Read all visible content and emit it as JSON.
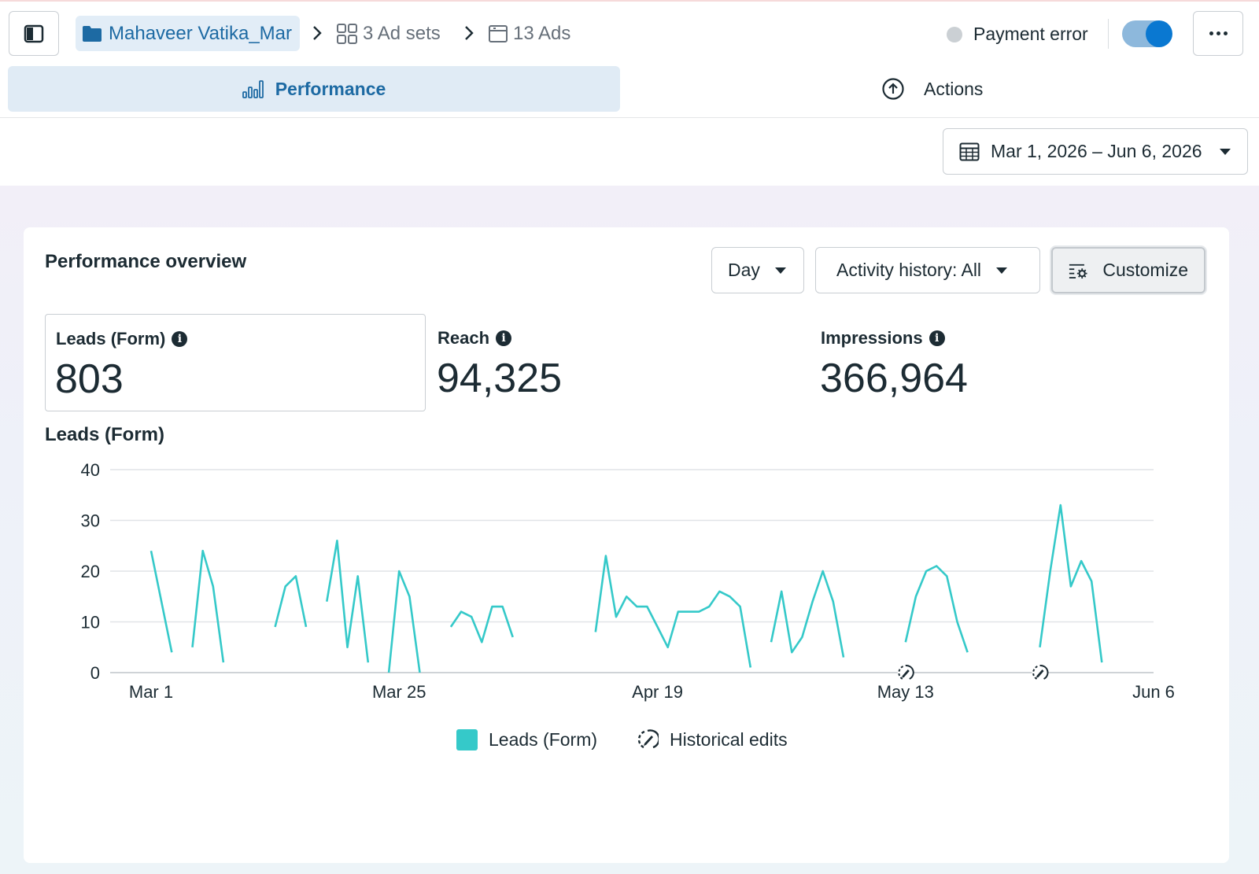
{
  "breadcrumb": {
    "campaign": "Mahaveer Vatika_Mar",
    "adsets": "3 Ad sets",
    "ads": "13 Ads"
  },
  "status": {
    "label": "Payment error",
    "toggle_on": true
  },
  "tabs": {
    "performance": "Performance",
    "actions": "Actions"
  },
  "date_range": "Mar 1, 2026 – Jun 6, 2026",
  "overview": {
    "title": "Performance overview",
    "day_label": "Day",
    "activity_label": "Activity history: All",
    "customize_label": "Customize"
  },
  "metrics": [
    {
      "label": "Leads (Form)",
      "value": "803"
    },
    {
      "label": "Reach",
      "value": "94,325"
    },
    {
      "label": "Impressions",
      "value": "366,964"
    }
  ],
  "chart_title": "Leads (Form)",
  "legend": {
    "series": "Leads (Form)",
    "edits": "Historical edits"
  },
  "colors": {
    "accent": "#1d6aa3",
    "series": "#35c9c9",
    "toggle": "#0a78d1"
  },
  "chart_data": {
    "type": "line",
    "x_axis": "date",
    "x_start": "2026-03-01",
    "x_end": "2026-06-06",
    "x_tick_labels": [
      "Mar 1",
      "Mar 25",
      "Apr 19",
      "May 13",
      "Jun 6"
    ],
    "x_tick_dates": [
      "2026-03-01",
      "2026-03-25",
      "2026-04-19",
      "2026-05-13",
      "2026-06-06"
    ],
    "ylim": [
      0,
      40
    ],
    "y_ticks": [
      0,
      10,
      20,
      30,
      40
    ],
    "grid": true,
    "series": [
      {
        "name": "Leads (Form)",
        "segments": [
          [
            [
              "2026-03-01",
              24
            ],
            [
              "2026-03-03",
              4
            ]
          ],
          [
            [
              "2026-03-05",
              5
            ],
            [
              "2026-03-06",
              24
            ],
            [
              "2026-03-07",
              17
            ],
            [
              "2026-03-08",
              2
            ]
          ],
          [
            [
              "2026-03-13",
              9
            ],
            [
              "2026-03-14",
              17
            ],
            [
              "2026-03-15",
              19
            ],
            [
              "2026-03-16",
              9
            ]
          ],
          [
            [
              "2026-03-18",
              14
            ],
            [
              "2026-03-19",
              26
            ],
            [
              "2026-03-20",
              5
            ],
            [
              "2026-03-21",
              19
            ],
            [
              "2026-03-22",
              2
            ]
          ],
          [
            [
              "2026-03-24",
              0
            ],
            [
              "2026-03-25",
              20
            ],
            [
              "2026-03-26",
              15
            ],
            [
              "2026-03-27",
              0
            ]
          ],
          [
            [
              "2026-03-30",
              9
            ],
            [
              "2026-03-31",
              12
            ],
            [
              "2026-04-01",
              11
            ],
            [
              "2026-04-02",
              6
            ],
            [
              "2026-04-03",
              13
            ],
            [
              "2026-04-04",
              13
            ],
            [
              "2026-04-05",
              7
            ]
          ],
          [
            [
              "2026-04-13",
              8
            ],
            [
              "2026-04-14",
              23
            ],
            [
              "2026-04-15",
              11
            ],
            [
              "2026-04-16",
              15
            ],
            [
              "2026-04-17",
              13
            ],
            [
              "2026-04-18",
              13
            ],
            [
              "2026-04-19",
              9
            ],
            [
              "2026-04-20",
              5
            ],
            [
              "2026-04-21",
              12
            ],
            [
              "2026-04-22",
              12
            ],
            [
              "2026-04-23",
              12
            ],
            [
              "2026-04-24",
              13
            ],
            [
              "2026-04-25",
              16
            ],
            [
              "2026-04-26",
              15
            ],
            [
              "2026-04-27",
              13
            ],
            [
              "2026-04-28",
              1
            ]
          ],
          [
            [
              "2026-04-30",
              6
            ],
            [
              "2026-05-01",
              16
            ],
            [
              "2026-05-02",
              4
            ],
            [
              "2026-05-03",
              7
            ],
            [
              "2026-05-04",
              14
            ],
            [
              "2026-05-05",
              20
            ],
            [
              "2026-05-06",
              14
            ],
            [
              "2026-05-07",
              3
            ]
          ],
          [
            [
              "2026-05-13",
              6
            ],
            [
              "2026-05-14",
              15
            ],
            [
              "2026-05-15",
              20
            ],
            [
              "2026-05-16",
              21
            ],
            [
              "2026-05-17",
              19
            ],
            [
              "2026-05-18",
              10
            ],
            [
              "2026-05-19",
              4
            ]
          ],
          [
            [
              "2026-05-26",
              5
            ],
            [
              "2026-05-27",
              20
            ],
            [
              "2026-05-28",
              33
            ],
            [
              "2026-05-29",
              17
            ],
            [
              "2026-05-30",
              22
            ],
            [
              "2026-05-31",
              18
            ],
            [
              "2026-06-01",
              2
            ]
          ]
        ]
      }
    ],
    "historical_edits": [
      "2026-05-13",
      "2026-05-26"
    ]
  }
}
